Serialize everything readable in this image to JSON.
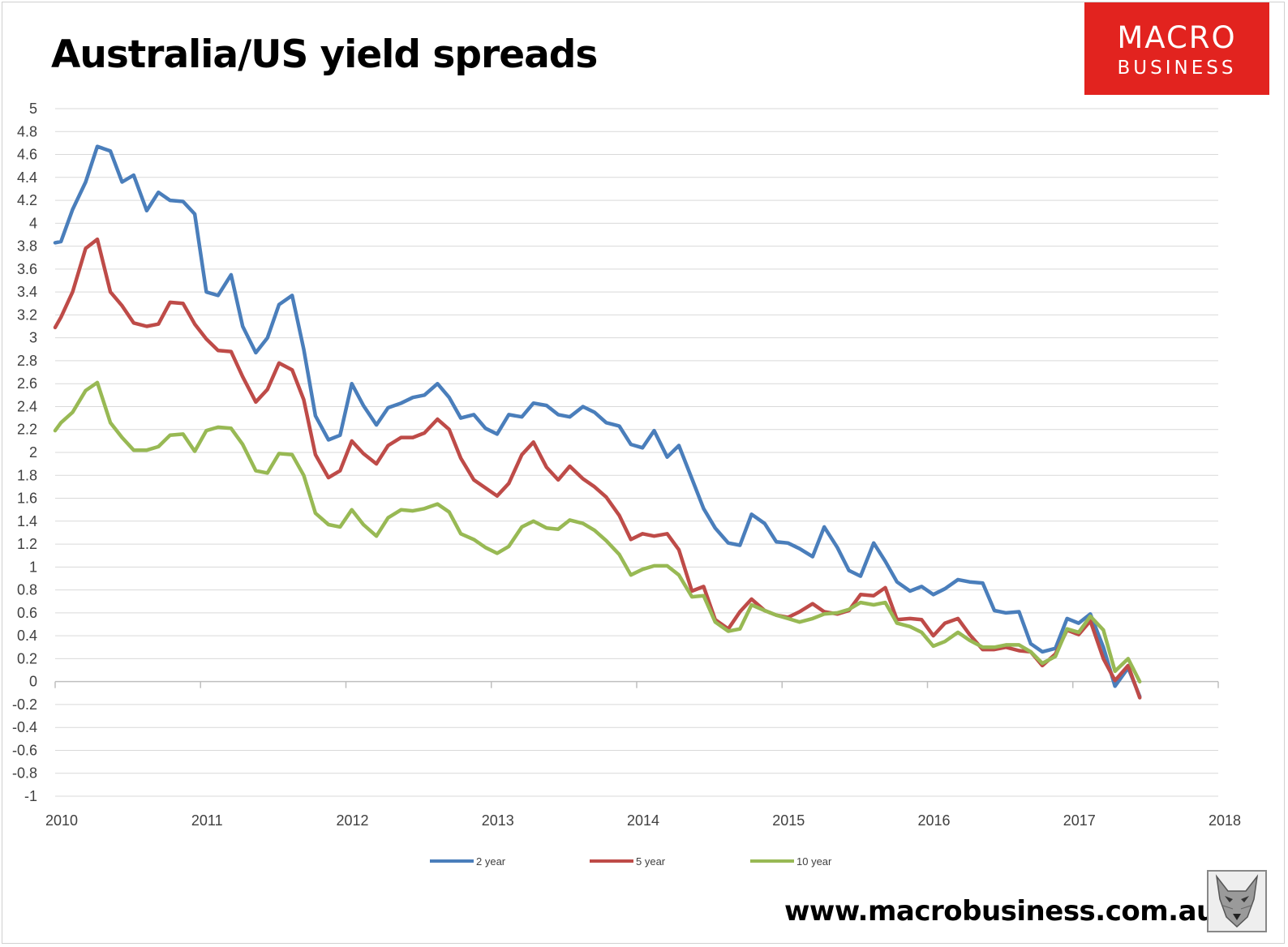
{
  "title": "Australia/US yield spreads",
  "brand": {
    "line1": "MACRO",
    "line2": "BUSINESS",
    "color": "#e2231f"
  },
  "footer_url": "www.macrobusiness.com.au",
  "logo_icon": "wolf-icon",
  "chart_data": {
    "type": "line",
    "title": "Australia/US yield spreads",
    "xlabel": "",
    "ylabel": "",
    "xlim": [
      2010,
      2018
    ],
    "ylim": [
      -1,
      5
    ],
    "x_ticks": [
      "2010",
      "2011",
      "2012",
      "2013",
      "2014",
      "2015",
      "2016",
      "2017",
      "2018"
    ],
    "y_ticks": [
      "5",
      "4.8",
      "4.6",
      "4.4",
      "4.2",
      "4",
      "3.8",
      "3.6",
      "3.4",
      "3.2",
      "3",
      "2.8",
      "2.6",
      "2.4",
      "2.2",
      "2",
      "1.8",
      "1.6",
      "1.4",
      "1.2",
      "1",
      "0.8",
      "0.6",
      "0.4",
      "0.2",
      "0",
      "-0.2",
      "-0.4",
      "-0.6",
      "-0.8",
      "-1"
    ],
    "grid": true,
    "legend_position": "bottom",
    "x_unit": "year (monthly observations)",
    "series": [
      {
        "name": "2 year",
        "color": "#4a7ebb",
        "x": [
          2010.0,
          2010.04,
          2010.12,
          2010.21,
          2010.29,
          2010.38,
          2010.46,
          2010.54,
          2010.63,
          2010.71,
          2010.79,
          2010.88,
          2010.96,
          2011.04,
          2011.12,
          2011.21,
          2011.29,
          2011.38,
          2011.46,
          2011.54,
          2011.63,
          2011.71,
          2011.79,
          2011.88,
          2011.96,
          2012.04,
          2012.12,
          2012.21,
          2012.29,
          2012.38,
          2012.46,
          2012.54,
          2012.63,
          2012.71,
          2012.79,
          2012.88,
          2012.96,
          2013.04,
          2013.12,
          2013.21,
          2013.29,
          2013.38,
          2013.46,
          2013.54,
          2013.63,
          2013.71,
          2013.79,
          2013.88,
          2013.96,
          2014.04,
          2014.12,
          2014.21,
          2014.29,
          2014.38,
          2014.46,
          2014.54,
          2014.63,
          2014.71,
          2014.79,
          2014.88,
          2014.96,
          2015.04,
          2015.12,
          2015.21,
          2015.29,
          2015.38,
          2015.46,
          2015.54,
          2015.63,
          2015.71,
          2015.79,
          2015.88,
          2015.96,
          2016.04,
          2016.12,
          2016.21,
          2016.29,
          2016.38,
          2016.46,
          2016.54,
          2016.63,
          2016.71,
          2016.79,
          2016.88,
          2016.96,
          2017.04,
          2017.12,
          2017.21,
          2017.29,
          2017.38,
          2017.46
        ],
        "values": [
          3.83,
          3.84,
          4.12,
          4.36,
          4.67,
          4.63,
          4.36,
          4.42,
          4.11,
          4.27,
          4.2,
          4.19,
          4.08,
          3.4,
          3.37,
          3.55,
          3.1,
          2.87,
          3.0,
          3.29,
          3.37,
          2.9,
          2.32,
          2.11,
          2.15,
          2.6,
          2.41,
          2.24,
          2.39,
          2.43,
          2.48,
          2.5,
          2.6,
          2.48,
          2.3,
          2.33,
          2.21,
          2.16,
          2.33,
          2.31,
          2.43,
          2.41,
          2.33,
          2.31,
          2.4,
          2.35,
          2.26,
          2.23,
          2.07,
          2.04,
          2.19,
          1.96,
          2.06,
          1.77,
          1.51,
          1.34,
          1.21,
          1.19,
          1.46,
          1.38,
          1.22,
          1.21,
          1.16,
          1.09,
          1.35,
          1.17,
          0.97,
          0.92,
          1.21,
          1.05,
          0.87,
          0.79,
          0.83,
          0.76,
          0.81,
          0.89,
          0.87,
          0.86,
          0.62,
          0.6,
          0.61,
          0.33,
          0.26,
          0.29,
          0.55,
          0.51,
          0.59,
          0.3,
          -0.04,
          0.12,
          -0.13
        ]
      },
      {
        "name": "5 year",
        "color": "#be4b48",
        "x": [
          2010.0,
          2010.04,
          2010.12,
          2010.21,
          2010.29,
          2010.38,
          2010.46,
          2010.54,
          2010.63,
          2010.71,
          2010.79,
          2010.88,
          2010.96,
          2011.04,
          2011.12,
          2011.21,
          2011.29,
          2011.38,
          2011.46,
          2011.54,
          2011.63,
          2011.71,
          2011.79,
          2011.88,
          2011.96,
          2012.04,
          2012.12,
          2012.21,
          2012.29,
          2012.38,
          2012.46,
          2012.54,
          2012.63,
          2012.71,
          2012.79,
          2012.88,
          2012.96,
          2013.04,
          2013.12,
          2013.21,
          2013.29,
          2013.38,
          2013.46,
          2013.54,
          2013.63,
          2013.71,
          2013.79,
          2013.88,
          2013.96,
          2014.04,
          2014.12,
          2014.21,
          2014.29,
          2014.38,
          2014.46,
          2014.54,
          2014.63,
          2014.71,
          2014.79,
          2014.88,
          2014.96,
          2015.04,
          2015.12,
          2015.21,
          2015.29,
          2015.38,
          2015.46,
          2015.54,
          2015.63,
          2015.71,
          2015.79,
          2015.88,
          2015.96,
          2016.04,
          2016.12,
          2016.21,
          2016.29,
          2016.38,
          2016.46,
          2016.54,
          2016.63,
          2016.71,
          2016.79,
          2016.88,
          2016.96,
          2017.04,
          2017.12,
          2017.21,
          2017.29,
          2017.38,
          2017.46
        ],
        "values": [
          3.09,
          3.18,
          3.4,
          3.78,
          3.86,
          3.4,
          3.28,
          3.13,
          3.1,
          3.12,
          3.31,
          3.3,
          3.12,
          2.99,
          2.89,
          2.88,
          2.66,
          2.44,
          2.55,
          2.78,
          2.72,
          2.46,
          1.98,
          1.78,
          1.84,
          2.1,
          1.99,
          1.9,
          2.06,
          2.13,
          2.13,
          2.17,
          2.29,
          2.2,
          1.95,
          1.76,
          1.69,
          1.62,
          1.73,
          1.98,
          2.09,
          1.87,
          1.76,
          1.88,
          1.77,
          1.7,
          1.61,
          1.45,
          1.24,
          1.29,
          1.27,
          1.29,
          1.15,
          0.79,
          0.83,
          0.54,
          0.46,
          0.61,
          0.72,
          0.62,
          0.58,
          0.56,
          0.61,
          0.68,
          0.61,
          0.59,
          0.62,
          0.76,
          0.75,
          0.82,
          0.54,
          0.55,
          0.54,
          0.4,
          0.51,
          0.55,
          0.41,
          0.28,
          0.28,
          0.3,
          0.27,
          0.26,
          0.14,
          0.24,
          0.45,
          0.41,
          0.53,
          0.2,
          0.01,
          0.14,
          -0.14
        ]
      },
      {
        "name": "10 year",
        "color": "#98b954",
        "x": [
          2010.0,
          2010.04,
          2010.12,
          2010.21,
          2010.29,
          2010.38,
          2010.46,
          2010.54,
          2010.63,
          2010.71,
          2010.79,
          2010.88,
          2010.96,
          2011.04,
          2011.12,
          2011.21,
          2011.29,
          2011.38,
          2011.46,
          2011.54,
          2011.63,
          2011.71,
          2011.79,
          2011.88,
          2011.96,
          2012.04,
          2012.12,
          2012.21,
          2012.29,
          2012.38,
          2012.46,
          2012.54,
          2012.63,
          2012.71,
          2012.79,
          2012.88,
          2012.96,
          2013.04,
          2013.12,
          2013.21,
          2013.29,
          2013.38,
          2013.46,
          2013.54,
          2013.63,
          2013.71,
          2013.79,
          2013.88,
          2013.96,
          2014.04,
          2014.12,
          2014.21,
          2014.29,
          2014.38,
          2014.46,
          2014.54,
          2014.63,
          2014.71,
          2014.79,
          2014.88,
          2014.96,
          2015.04,
          2015.12,
          2015.21,
          2015.29,
          2015.38,
          2015.46,
          2015.54,
          2015.63,
          2015.71,
          2015.79,
          2015.88,
          2015.96,
          2016.04,
          2016.12,
          2016.21,
          2016.29,
          2016.38,
          2016.46,
          2016.54,
          2016.63,
          2016.71,
          2016.79,
          2016.88,
          2016.96,
          2017.04,
          2017.12,
          2017.21,
          2017.29,
          2017.38,
          2017.46
        ],
        "values": [
          2.19,
          2.26,
          2.35,
          2.54,
          2.61,
          2.26,
          2.13,
          2.02,
          2.02,
          2.05,
          2.15,
          2.16,
          2.01,
          2.19,
          2.22,
          2.21,
          2.07,
          1.84,
          1.82,
          1.99,
          1.98,
          1.8,
          1.47,
          1.37,
          1.35,
          1.5,
          1.37,
          1.27,
          1.43,
          1.5,
          1.49,
          1.51,
          1.55,
          1.48,
          1.29,
          1.24,
          1.17,
          1.12,
          1.18,
          1.35,
          1.4,
          1.34,
          1.33,
          1.41,
          1.38,
          1.32,
          1.23,
          1.11,
          0.93,
          0.98,
          1.01,
          1.01,
          0.93,
          0.74,
          0.75,
          0.52,
          0.44,
          0.46,
          0.67,
          0.62,
          0.58,
          0.55,
          0.52,
          0.55,
          0.59,
          0.6,
          0.63,
          0.69,
          0.67,
          0.69,
          0.51,
          0.48,
          0.43,
          0.31,
          0.35,
          0.43,
          0.36,
          0.3,
          0.3,
          0.32,
          0.32,
          0.26,
          0.16,
          0.22,
          0.46,
          0.43,
          0.57,
          0.45,
          0.09,
          0.2,
          0.0
        ]
      }
    ]
  }
}
